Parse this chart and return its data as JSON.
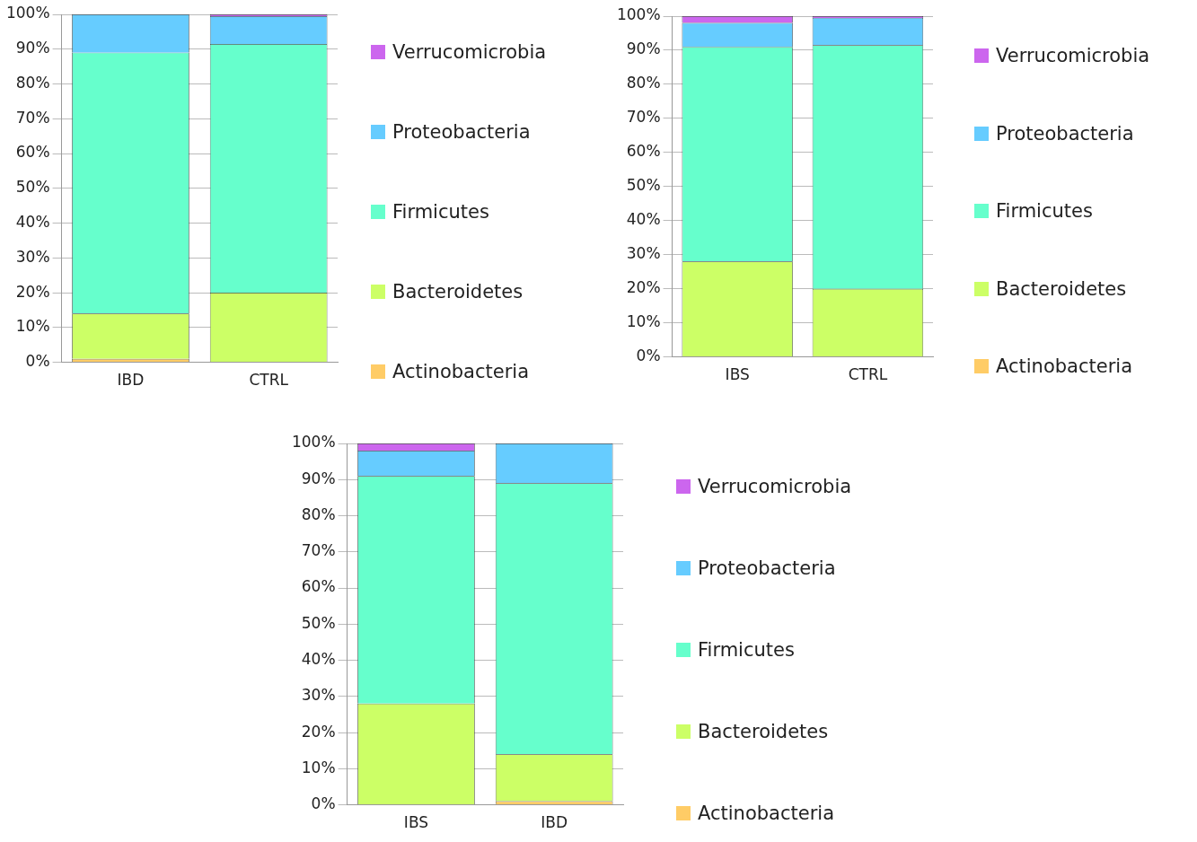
{
  "chart_data": [
    {
      "type": "bar",
      "stacked": true,
      "categories": [
        "IBD",
        "CTRL"
      ],
      "series": [
        {
          "name": "Actinobacteria",
          "color": "#ffcc66",
          "values": [
            1,
            0
          ]
        },
        {
          "name": "Bacteroidetes",
          "color": "#ccff66",
          "values": [
            13,
            20
          ]
        },
        {
          "name": "Firmicutes",
          "color": "#66ffcc",
          "values": [
            75,
            71.5
          ]
        },
        {
          "name": "Proteobacteria",
          "color": "#66ccff",
          "values": [
            11,
            8
          ]
        },
        {
          "name": "Verrucomicrobia",
          "color": "#cc66ee",
          "values": [
            0,
            0.5
          ]
        }
      ],
      "ylim": [
        0,
        100
      ],
      "yticks": [
        {
          "value": 0,
          "label": "0%"
        },
        {
          "value": 10,
          "label": "10%"
        },
        {
          "value": 20,
          "label": "20%"
        },
        {
          "value": 30,
          "label": "30%"
        },
        {
          "value": 40,
          "label": "40%"
        },
        {
          "value": 50,
          "label": "50%"
        },
        {
          "value": 60,
          "label": "60%"
        },
        {
          "value": 70,
          "label": "70%"
        },
        {
          "value": 80,
          "label": "80%"
        },
        {
          "value": 90,
          "label": "90%"
        },
        {
          "value": 100,
          "label": "100%"
        }
      ],
      "grid": "y",
      "legend": "right"
    },
    {
      "type": "bar",
      "stacked": true,
      "categories": [
        "IBS",
        "CTRL"
      ],
      "series": [
        {
          "name": "Actinobacteria",
          "color": "#ffcc66",
          "values": [
            0,
            0
          ]
        },
        {
          "name": "Bacteroidetes",
          "color": "#ccff66",
          "values": [
            28,
            20
          ]
        },
        {
          "name": "Firmicutes",
          "color": "#66ffcc",
          "values": [
            63,
            71.5
          ]
        },
        {
          "name": "Proteobacteria",
          "color": "#66ccff",
          "values": [
            7,
            8
          ]
        },
        {
          "name": "Verrucomicrobia",
          "color": "#cc66ee",
          "values": [
            2,
            0.5
          ]
        }
      ],
      "ylim": [
        0,
        100
      ],
      "yticks": [
        {
          "value": 0,
          "label": "0%"
        },
        {
          "value": 10,
          "label": "10%"
        },
        {
          "value": 20,
          "label": "20%"
        },
        {
          "value": 30,
          "label": "30%"
        },
        {
          "value": 40,
          "label": "40%"
        },
        {
          "value": 50,
          "label": "50%"
        },
        {
          "value": 60,
          "label": "60%"
        },
        {
          "value": 70,
          "label": "70%"
        },
        {
          "value": 80,
          "label": "80%"
        },
        {
          "value": 90,
          "label": "90%"
        },
        {
          "value": 100,
          "label": "100%"
        }
      ],
      "grid": "y",
      "legend": "right"
    },
    {
      "type": "bar",
      "stacked": true,
      "categories": [
        "IBS",
        "IBD"
      ],
      "series": [
        {
          "name": "Actinobacteria",
          "color": "#ffcc66",
          "values": [
            0,
            1
          ]
        },
        {
          "name": "Bacteroidetes",
          "color": "#ccff66",
          "values": [
            28,
            13
          ]
        },
        {
          "name": "Firmicutes",
          "color": "#66ffcc",
          "values": [
            63,
            75
          ]
        },
        {
          "name": "Proteobacteria",
          "color": "#66ccff",
          "values": [
            7,
            11
          ]
        },
        {
          "name": "Verrucomicrobia",
          "color": "#cc66ee",
          "values": [
            2,
            0
          ]
        }
      ],
      "ylim": [
        0,
        100
      ],
      "yticks": [
        {
          "value": 0,
          "label": "0%"
        },
        {
          "value": 10,
          "label": "10%"
        },
        {
          "value": 20,
          "label": "20%"
        },
        {
          "value": 30,
          "label": "30%"
        },
        {
          "value": 40,
          "label": "40%"
        },
        {
          "value": 50,
          "label": "50%"
        },
        {
          "value": 60,
          "label": "60%"
        },
        {
          "value": 70,
          "label": "70%"
        },
        {
          "value": 80,
          "label": "80%"
        },
        {
          "value": 90,
          "label": "90%"
        },
        {
          "value": 100,
          "label": "100%"
        }
      ],
      "grid": "y",
      "legend": "right"
    }
  ]
}
